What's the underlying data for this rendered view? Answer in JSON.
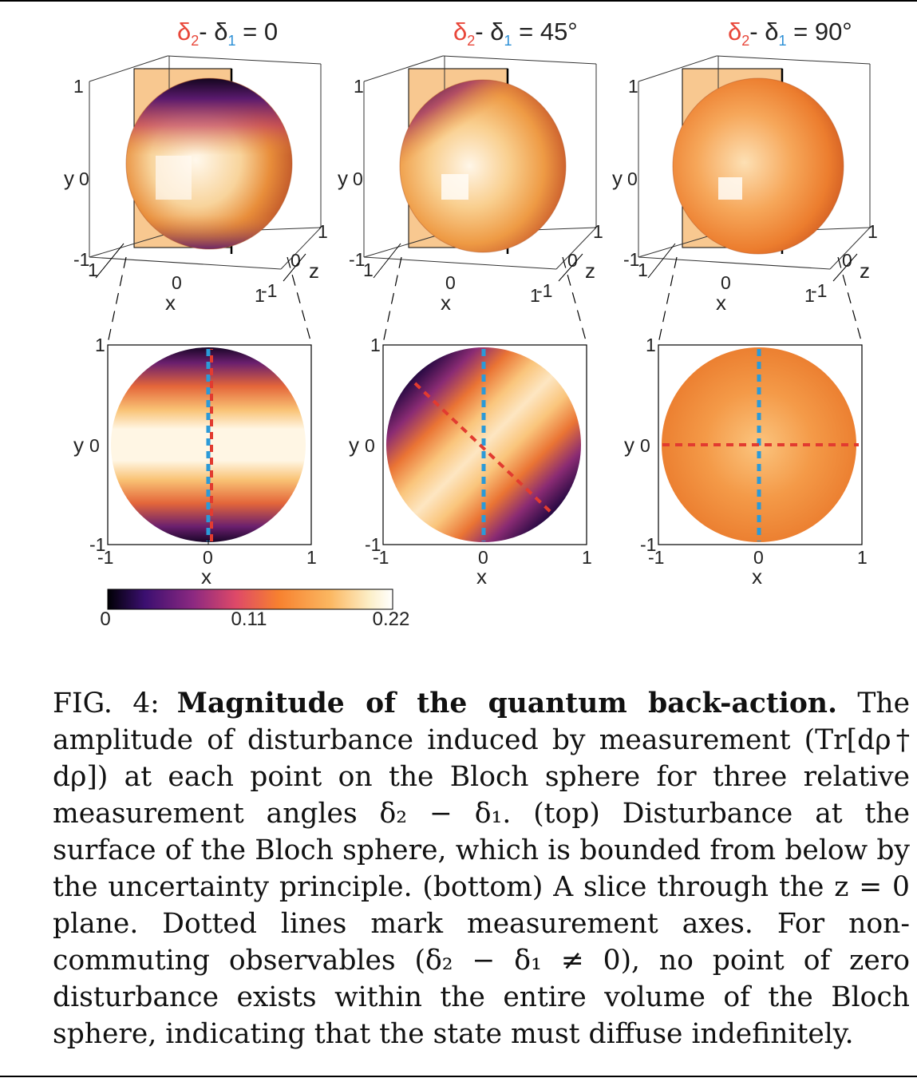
{
  "panels": [
    {
      "delta_label": "δ",
      "sub2": "2",
      "dash": "- δ",
      "sub1": "1",
      "eq": " = 0"
    },
    {
      "delta_label": "δ",
      "sub2": "2",
      "dash": "- δ",
      "sub1": "1",
      "eq": " = 45°"
    },
    {
      "delta_label": "δ",
      "sub2": "2",
      "dash": "- δ",
      "sub1": "1",
      "eq": " = 90°"
    }
  ],
  "axes": {
    "x_label": "x",
    "y_label": "y",
    "z_label": "z",
    "tick_pos": "1",
    "tick_zero": "0",
    "tick_neg": "-1"
  },
  "colorbar": {
    "min": "0",
    "mid": "0.11",
    "max": "0.22",
    "colors": [
      "#000004",
      "#3b0f70",
      "#8c2981",
      "#de4968",
      "#f7812f",
      "#fbb761",
      "#fcfdbf",
      "#ffffff"
    ]
  },
  "chart_data": {
    "type": "heatmap",
    "title": "Magnitude of the quantum back-action",
    "quantity": "Tr[dρ† dρ]",
    "color_range": [
      0,
      0.22
    ],
    "panels": [
      {
        "relative_angle_deg": 0,
        "measurement_axes_deg": [
          90,
          90
        ],
        "x_range": [
          -1,
          1
        ],
        "y_range": [
          -1,
          1
        ]
      },
      {
        "relative_angle_deg": 45,
        "measurement_axes_deg": [
          90,
          135
        ],
        "x_range": [
          -1,
          1
        ],
        "y_range": [
          -1,
          1
        ]
      },
      {
        "relative_angle_deg": 90,
        "measurement_axes_deg": [
          90,
          180
        ],
        "x_range": [
          -1,
          1
        ],
        "y_range": [
          -1,
          1
        ]
      }
    ],
    "measurement_line_colors": [
      "#2b9ad8",
      "#e23b30"
    ]
  },
  "caption": {
    "fig_label": "FIG. 4:",
    "title": "Magnitude of the quantum back-action.",
    "body": "The amplitude of disturbance induced by measurement (Tr[dρ† dρ]) at each point on the Bloch sphere for three relative measurement angles δ₂ − δ₁. (top) Disturbance at the surface of the Bloch sphere, which is bounded from below by the uncertainty principle. (bottom) A slice through the z = 0 plane. Dotted lines mark measurement axes. For non-commuting observables (δ₂ − δ₁ ≠ 0), no point of zero disturbance exists within the entire volume of the Bloch sphere, indicating that the state must diffuse indefinitely."
  }
}
